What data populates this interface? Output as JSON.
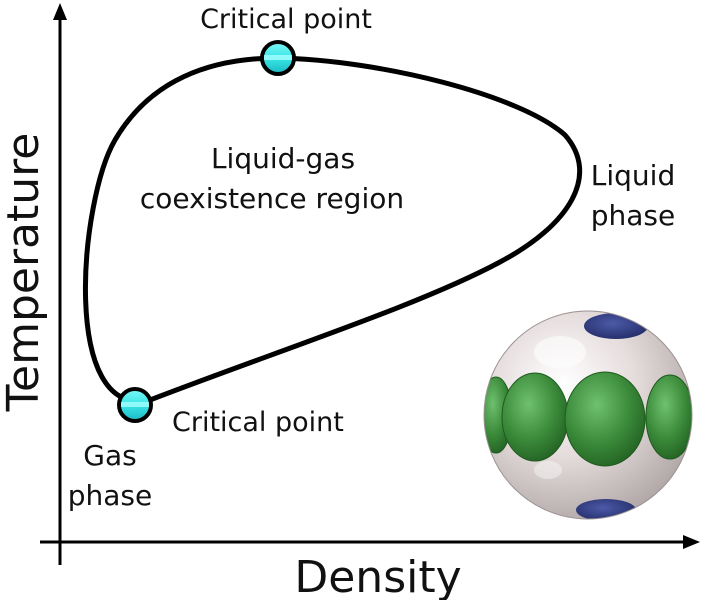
{
  "axes": {
    "x_label": "Density",
    "y_label": "Temperature"
  },
  "labels": {
    "critical_point_top": "Critical point",
    "critical_point_bottom": "Critical point",
    "coexistence_line1": "Liquid-gas",
    "coexistence_line2": "coexistence region",
    "liquid_line1": "Liquid",
    "liquid_line2": "phase",
    "gas_line1": "Gas",
    "gas_line2": "phase"
  },
  "colors": {
    "curve": "#000000",
    "critical_point_fill": "#39e6e6",
    "sphere_shell": "#d9cfcf",
    "green_patches": "#3a8a3a",
    "blue_patches": "#1f2a66"
  }
}
